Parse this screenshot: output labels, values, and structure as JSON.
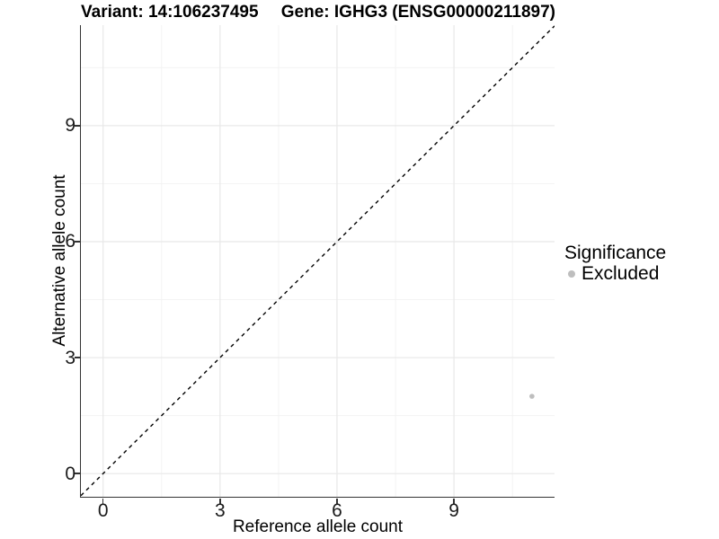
{
  "header": {
    "variant_title": "Variant: 14:106237495",
    "gene_title": "Gene: IGHG3 (ENSG00000211897)"
  },
  "chart_data": {
    "type": "scatter",
    "xlabel": "Reference allele count",
    "ylabel": "Alternative allele count",
    "xlim": [
      -0.57,
      11.58
    ],
    "ylim": [
      -0.6,
      11.6
    ],
    "xticks": [
      0,
      3,
      6,
      9
    ],
    "yticks": [
      0,
      3,
      6,
      9
    ],
    "xminor": [
      1.5,
      4.5,
      7.5,
      10.5
    ],
    "yminor": [
      1.5,
      4.5,
      7.5,
      10.5
    ],
    "grid": "major+minor on white background",
    "series": [
      {
        "name": "Excluded",
        "color": "#bebebe",
        "marker_radius": 2.8,
        "points": [
          {
            "x": 11,
            "y": 2
          }
        ]
      }
    ],
    "reference_line": {
      "kind": "identity y=x",
      "style": "dashed",
      "color": "#000000"
    },
    "legend": {
      "title": "Significance",
      "position": "right-middle",
      "items": [
        {
          "label": "Excluded",
          "color": "#bebebe"
        }
      ]
    }
  },
  "colors": {
    "background": "#ffffff",
    "grid_major": "#e8e8e8",
    "grid_minor": "#f2f2f2",
    "axis_line": "#333333",
    "tick_text": "#1a1a1a",
    "text": "#000000",
    "point": "#bebebe"
  }
}
